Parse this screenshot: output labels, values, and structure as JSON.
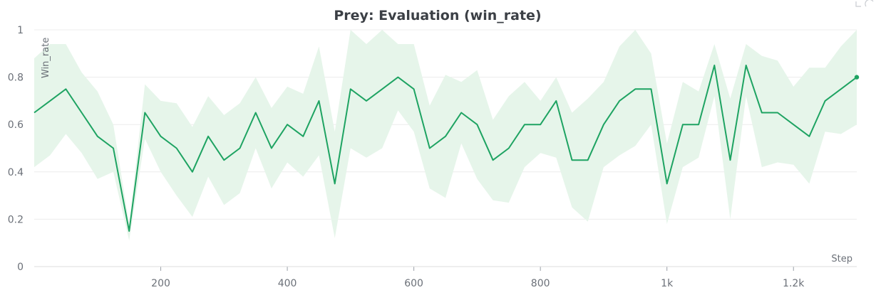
{
  "chart_data": {
    "type": "line",
    "title": "Prey: Evaluation (win_rate)",
    "xlabel": "Step",
    "ylabel": "Win_rate",
    "xlim": [
      0,
      1300
    ],
    "ylim": [
      0,
      1
    ],
    "x_ticks": [
      200,
      400,
      600,
      800,
      1000,
      1200
    ],
    "x_tick_labels": [
      "200",
      "400",
      "600",
      "800",
      "1k",
      "1.2k"
    ],
    "y_ticks": [
      0,
      0.2,
      0.4,
      0.6,
      0.8,
      1
    ],
    "y_tick_labels": [
      "0",
      "0.2",
      "0.4",
      "0.6",
      "0.8",
      "1"
    ],
    "grid": "horizontal",
    "legend": "none",
    "color": "#1ea362",
    "band_color": "#e6f5ea",
    "grid_color": "#ececec",
    "title_color": "#3b3f45",
    "series": [
      {
        "x": [
          0,
          25,
          50,
          75,
          100,
          125,
          150,
          175,
          200,
          225,
          250,
          275,
          300,
          325,
          350,
          375,
          400,
          425,
          450,
          475,
          500,
          525,
          550,
          575,
          600,
          625,
          650,
          675,
          700,
          725,
          750,
          775,
          800,
          825,
          850,
          875,
          900,
          925,
          950,
          975,
          1000,
          1025,
          1050,
          1075,
          1100,
          1125,
          1150,
          1175,
          1200,
          1225,
          1250,
          1275,
          1300
        ],
        "y": [
          0.65,
          0.7,
          0.75,
          0.65,
          0.55,
          0.5,
          0.15,
          0.65,
          0.55,
          0.5,
          0.4,
          0.55,
          0.45,
          0.5,
          0.65,
          0.5,
          0.6,
          0.55,
          0.7,
          0.35,
          0.75,
          0.7,
          0.75,
          0.8,
          0.75,
          0.5,
          0.55,
          0.65,
          0.6,
          0.45,
          0.5,
          0.6,
          0.6,
          0.7,
          0.45,
          0.45,
          0.6,
          0.7,
          0.75,
          0.75,
          0.35,
          0.6,
          0.6,
          0.85,
          0.45,
          0.85,
          0.65,
          0.65,
          0.6,
          0.55,
          0.7,
          0.75,
          0.8
        ],
        "upper": [
          0.88,
          0.94,
          0.94,
          0.82,
          0.74,
          0.6,
          0.18,
          0.77,
          0.7,
          0.69,
          0.59,
          0.72,
          0.64,
          0.69,
          0.8,
          0.67,
          0.76,
          0.73,
          0.93,
          0.57,
          1.0,
          0.94,
          1.0,
          0.94,
          0.94,
          0.68,
          0.81,
          0.78,
          0.83,
          0.62,
          0.72,
          0.78,
          0.7,
          0.8,
          0.65,
          0.71,
          0.78,
          0.93,
          1.0,
          0.9,
          0.52,
          0.78,
          0.74,
          0.94,
          0.71,
          0.94,
          0.89,
          0.87,
          0.76,
          0.84,
          0.84,
          0.93,
          1.0
        ],
        "lower": [
          0.42,
          0.47,
          0.56,
          0.48,
          0.37,
          0.4,
          0.11,
          0.54,
          0.4,
          0.3,
          0.21,
          0.38,
          0.26,
          0.31,
          0.5,
          0.33,
          0.44,
          0.38,
          0.47,
          0.12,
          0.5,
          0.46,
          0.5,
          0.66,
          0.57,
          0.33,
          0.29,
          0.52,
          0.37,
          0.28,
          0.27,
          0.42,
          0.48,
          0.46,
          0.25,
          0.19,
          0.42,
          0.47,
          0.51,
          0.6,
          0.18,
          0.42,
          0.46,
          0.72,
          0.2,
          0.72,
          0.42,
          0.44,
          0.43,
          0.35,
          0.57,
          0.56,
          0.6
        ]
      }
    ]
  }
}
